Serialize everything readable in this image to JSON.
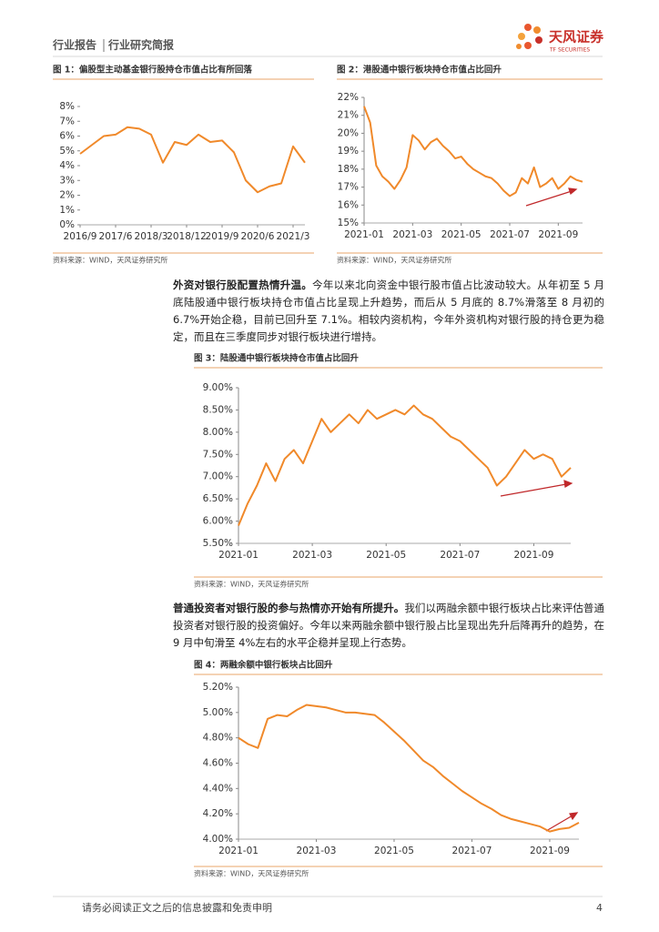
{
  "header": {
    "left": "行业报告",
    "right": "行业研究简报",
    "logo": "天风证券",
    "logo_sub": "TF SECURITIES"
  },
  "chart_data": [
    {
      "type": "line",
      "title": "图 1：偏股型主动基金银行股持仓市值占比有所回落",
      "source": "资料来源：WIND，天风证券研究所",
      "color": "#f0892a",
      "categories": [
        "2016/9",
        null,
        null,
        "2017/6",
        null,
        null,
        "2018/3",
        null,
        null,
        "2018/12",
        null,
        null,
        "2019/9",
        null,
        null,
        "2020/6",
        null,
        null,
        "2021/3",
        null
      ],
      "values": [
        4.8,
        5.4,
        6.0,
        6.1,
        6.6,
        6.5,
        6.1,
        4.2,
        5.6,
        5.4,
        6.1,
        5.6,
        5.7,
        4.9,
        3.0,
        2.2,
        2.6,
        2.8,
        5.3,
        4.2
      ],
      "ylim": [
        0,
        8
      ],
      "yticks": [
        {
          "value": 0,
          "label": "0%"
        },
        {
          "value": 1,
          "label": "1%"
        },
        {
          "value": 2,
          "label": "2%"
        },
        {
          "value": 3,
          "label": "3%"
        },
        {
          "value": 4,
          "label": "4%"
        },
        {
          "value": 5,
          "label": "5%"
        },
        {
          "value": 6,
          "label": "6%"
        },
        {
          "value": 7,
          "label": "7%"
        },
        {
          "value": 8,
          "label": "8%"
        }
      ]
    },
    {
      "type": "line",
      "title": "图 2：港股通中银行板块持仓市值占比回升",
      "source": "资料来源：WIND，天风证券研究所",
      "color": "#f0892a",
      "categories": [
        "2021-01",
        null,
        null,
        null,
        null,
        null,
        null,
        null,
        "2021-03",
        null,
        null,
        null,
        null,
        null,
        null,
        null,
        "2021-05",
        null,
        null,
        null,
        null,
        null,
        null,
        null,
        "2021-07",
        null,
        null,
        null,
        null,
        null,
        null,
        null,
        "2021-09",
        null,
        null,
        null,
        null
      ],
      "values": [
        21.5,
        20.6,
        18.2,
        17.6,
        17.3,
        16.9,
        17.4,
        18.1,
        19.9,
        19.6,
        19.1,
        19.5,
        19.7,
        19.3,
        19.0,
        18.6,
        18.7,
        18.3,
        18.0,
        17.8,
        17.6,
        17.5,
        17.2,
        16.8,
        16.5,
        16.7,
        17.5,
        17.2,
        18.1,
        17.0,
        17.2,
        17.5,
        16.9,
        17.2,
        17.6,
        17.4,
        17.3
      ],
      "ylim": [
        15,
        22
      ],
      "yticks": [
        {
          "value": 15,
          "label": "15%"
        },
        {
          "value": 16,
          "label": "16%"
        },
        {
          "value": 17,
          "label": "17%"
        },
        {
          "value": 18,
          "label": "18%"
        },
        {
          "value": 19,
          "label": "19%"
        },
        {
          "value": 20,
          "label": "20%"
        },
        {
          "value": 21,
          "label": "21%"
        },
        {
          "value": 22,
          "label": "22%"
        }
      ]
    },
    {
      "type": "line",
      "title": "图 3：陆股通中银行板块持仓市值占比回升",
      "source": "资料来源：WIND，天风证券研究所",
      "color": "#f0892a",
      "categories": [
        "2021-01",
        null,
        null,
        null,
        null,
        null,
        null,
        null,
        "2021-03",
        null,
        null,
        null,
        null,
        null,
        null,
        null,
        "2021-05",
        null,
        null,
        null,
        null,
        null,
        null,
        null,
        "2021-07",
        null,
        null,
        null,
        null,
        null,
        null,
        null,
        "2021-09",
        null,
        null,
        null,
        null
      ],
      "values": [
        5.9,
        6.4,
        6.8,
        7.3,
        6.9,
        7.4,
        7.6,
        7.3,
        7.8,
        8.3,
        8.0,
        8.2,
        8.4,
        8.2,
        8.5,
        8.3,
        8.4,
        8.5,
        8.4,
        8.6,
        8.4,
        8.3,
        8.1,
        7.9,
        7.8,
        7.6,
        7.4,
        7.2,
        6.8,
        7.0,
        7.3,
        7.6,
        7.4,
        7.5,
        7.4,
        7.0,
        7.2
      ],
      "ylim": [
        5.5,
        9
      ],
      "yticks": [
        {
          "value": 5.5,
          "label": "5.50%"
        },
        {
          "value": 6,
          "label": "6.00%"
        },
        {
          "value": 6.5,
          "label": "6.50%"
        },
        {
          "value": 7,
          "label": "7.00%"
        },
        {
          "value": 7.5,
          "label": "7.50%"
        },
        {
          "value": 8,
          "label": "8.00%"
        },
        {
          "value": 8.5,
          "label": "8.50%"
        },
        {
          "value": 9,
          "label": "9.00%"
        }
      ]
    },
    {
      "type": "line",
      "title": "图 4：两融余额中银行板块占比回升",
      "source": "资料来源：WIND，天风证券研究所",
      "color": "#f0892a",
      "categories": [
        "2021-01",
        null,
        null,
        null,
        null,
        null,
        null,
        null,
        "2021-03",
        null,
        null,
        null,
        null,
        null,
        null,
        null,
        "2021-05",
        null,
        null,
        null,
        null,
        null,
        null,
        null,
        "2021-07",
        null,
        null,
        null,
        null,
        null,
        null,
        null,
        "2021-09",
        null,
        null,
        null
      ],
      "values": [
        4.8,
        4.75,
        4.72,
        4.95,
        4.98,
        4.97,
        5.02,
        5.06,
        5.05,
        5.04,
        5.02,
        5.0,
        5.0,
        4.99,
        4.98,
        4.92,
        4.85,
        4.78,
        4.7,
        4.62,
        4.57,
        4.5,
        4.44,
        4.38,
        4.33,
        4.28,
        4.24,
        4.19,
        4.16,
        4.14,
        4.12,
        4.1,
        4.06,
        4.08,
        4.09,
        4.13
      ],
      "ylim": [
        4,
        5.2
      ],
      "yticks": [
        {
          "value": 4,
          "label": "4.00%"
        },
        {
          "value": 4.2,
          "label": "4.20%"
        },
        {
          "value": 4.4,
          "label": "4.40%"
        },
        {
          "value": 4.6,
          "label": "4.60%"
        },
        {
          "value": 4.8,
          "label": "4.80%"
        },
        {
          "value": 5,
          "label": "5.00%"
        },
        {
          "value": 5.2,
          "label": "5.20%"
        }
      ]
    }
  ],
  "paragraphs": [
    {
      "lead": "外资对银行股配置热情升温。",
      "body": "今年以来北向资金中银行股市值占比波动较大。从年初至 5 月底陆股通中银行板块持仓市值占比呈现上升趋势，而后从 5 月底的 8.7%滑落至 8 月初的 6.7%开始企稳，目前已回升至 7.1%。相较内资机构，今年外资机构对银行股的持仓更为稳定，而且在三季度同步对银行板块进行增持。"
    },
    {
      "lead": "普通投资者对银行股的参与热情亦开始有所提升。",
      "body": "我们以两融余额中银行板块占比来评估普通投资者对银行股的投资偏好。今年以来两融余额中银行股占比呈现出先升后降再升的趋势，在 9 月中旬滑至 4%左右的水平企稳并呈现上行态势。"
    }
  ],
  "footer": {
    "disclaimer": "请务必阅读正文之后的信息披露和免责申明",
    "page": "4"
  }
}
